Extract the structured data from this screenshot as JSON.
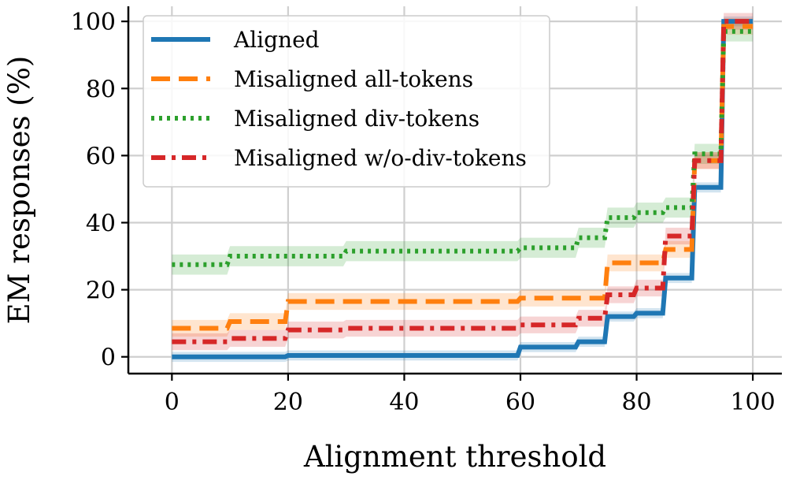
{
  "chart_data": {
    "type": "line",
    "xlabel": "Alignment threshold",
    "ylabel": "EM responses (%)",
    "xlim": [
      -7.5,
      105
    ],
    "ylim": [
      -5,
      104.5
    ],
    "xticks": [
      0,
      20,
      40,
      60,
      80,
      100
    ],
    "yticks": [
      0,
      20,
      40,
      60,
      80,
      100
    ],
    "grid": true,
    "legend_position": "top-left",
    "series": [
      {
        "name": "Aligned",
        "color": "#1f77b4",
        "dash": "solid",
        "band": 1.5,
        "x": [
          0,
          19.5,
          20,
          59.5,
          60,
          69.5,
          70,
          74.5,
          75,
          79.5,
          80,
          84.5,
          85,
          89.5,
          90,
          94.5,
          95,
          100
        ],
        "y": [
          0,
          0,
          0.4,
          0.4,
          2.9,
          2.9,
          4.5,
          4.5,
          12,
          12,
          13,
          13,
          23.5,
          23.5,
          50.5,
          50.5,
          100,
          100
        ]
      },
      {
        "name": "Misaligned all-tokens",
        "color": "#ff7f0e",
        "dash": "24,11",
        "band": 2.5,
        "x": [
          0,
          9.5,
          10,
          19.5,
          20,
          59.5,
          60,
          74.5,
          75,
          84.5,
          85,
          89.5,
          90,
          94.5,
          95,
          100
        ],
        "y": [
          8.5,
          8.5,
          10.5,
          10.5,
          16.5,
          16.5,
          17.5,
          17.5,
          28,
          28,
          32,
          32,
          58.5,
          58.5,
          98.5,
          98.5
        ]
      },
      {
        "name": "Misaligned div-tokens",
        "color": "#2ca02c",
        "dash": "4,6",
        "band": 3,
        "x": [
          0,
          9.5,
          10,
          29.5,
          30,
          59.5,
          60,
          69.5,
          70,
          74.5,
          75,
          79.5,
          80,
          84.5,
          85,
          89.5,
          90,
          94.5,
          95,
          100
        ],
        "y": [
          27.5,
          27.5,
          30,
          30,
          31.5,
          31.5,
          32.5,
          32.5,
          35.5,
          35.5,
          41.5,
          41.5,
          43,
          43,
          44.5,
          44.5,
          60.5,
          60.5,
          97,
          97
        ]
      },
      {
        "name": "Misaligned w/o-div-tokens",
        "color": "#d62728",
        "dash": "18,8,5,8",
        "band": 2.5,
        "x": [
          0,
          9.5,
          10,
          19.5,
          20,
          29.5,
          30,
          59.5,
          60,
          69.5,
          70,
          74.5,
          75,
          79.5,
          80,
          84.5,
          85,
          89.5,
          90,
          94.5,
          95,
          100
        ],
        "y": [
          4.5,
          4.5,
          5.5,
          5.5,
          8,
          8,
          8.5,
          8.5,
          9.5,
          9.5,
          11.5,
          11.5,
          18.5,
          18.5,
          20.5,
          20.5,
          36,
          36,
          58.5,
          58.5,
          100,
          100
        ]
      }
    ]
  }
}
